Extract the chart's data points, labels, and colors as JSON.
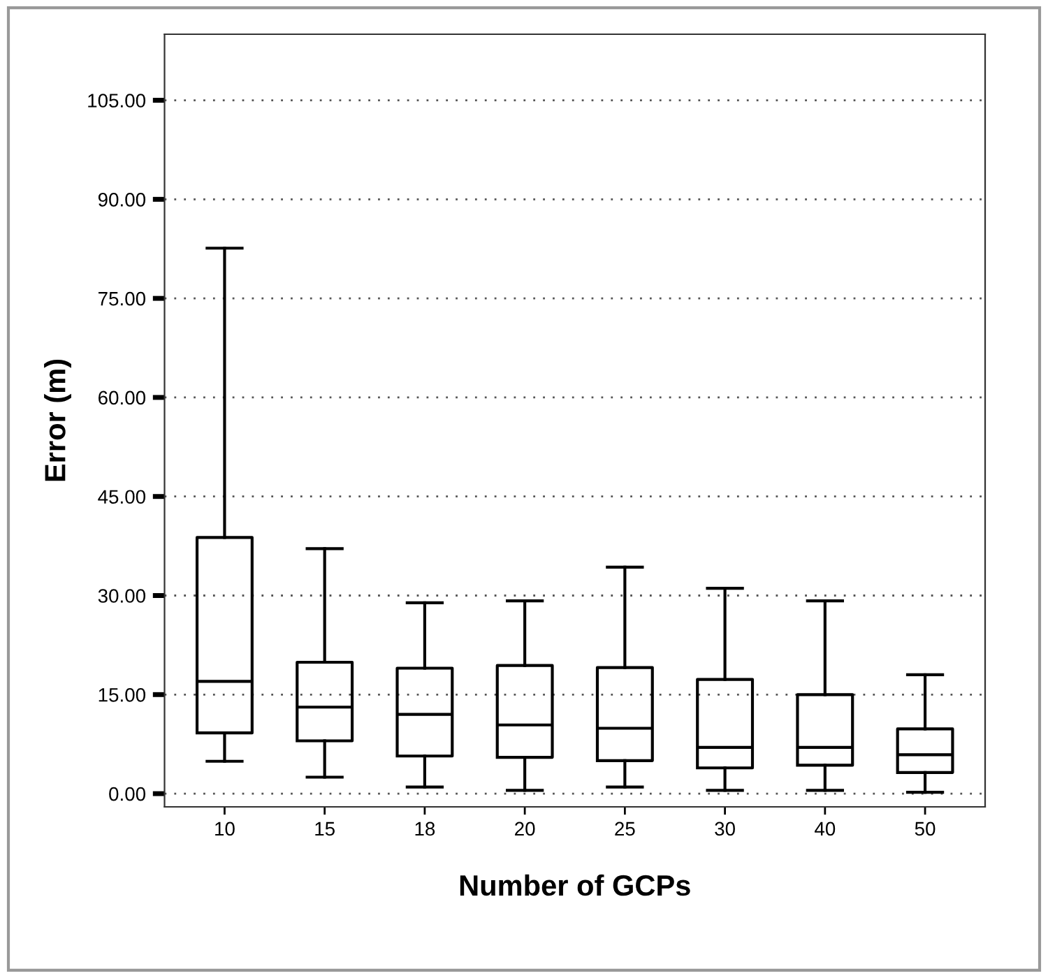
{
  "chart_data": {
    "type": "box",
    "xlabel": "Number of GCPs",
    "ylabel": "Error (m)",
    "categories": [
      "10",
      "15",
      "18",
      "20",
      "25",
      "30",
      "40",
      "50"
    ],
    "boxes": [
      {
        "low": 4.9,
        "q1": 9.2,
        "median": 17.0,
        "q3": 38.8,
        "high": 82.6
      },
      {
        "low": 2.5,
        "q1": 8.0,
        "median": 13.1,
        "q3": 19.9,
        "high": 37.1
      },
      {
        "low": 1.0,
        "q1": 5.7,
        "median": 12.0,
        "q3": 19.0,
        "high": 28.9
      },
      {
        "low": 0.5,
        "q1": 5.5,
        "median": 10.4,
        "q3": 19.4,
        "high": 29.2
      },
      {
        "low": 1.0,
        "q1": 5.0,
        "median": 9.9,
        "q3": 19.1,
        "high": 34.3
      },
      {
        "low": 0.5,
        "q1": 3.9,
        "median": 7.0,
        "q3": 17.3,
        "high": 31.1
      },
      {
        "low": 0.5,
        "q1": 4.3,
        "median": 7.0,
        "q3": 15.0,
        "high": 29.2
      },
      {
        "low": 0.2,
        "q1": 3.2,
        "median": 5.9,
        "q3": 9.8,
        "high": 18.0
      }
    ],
    "color": "#000000",
    "ylim": [
      -2,
      115
    ],
    "yticks": [
      {
        "value": 0,
        "label": "0.00"
      },
      {
        "value": 15,
        "label": "15.00"
      },
      {
        "value": 30,
        "label": "30.00"
      },
      {
        "value": 45,
        "label": "45.00"
      },
      {
        "value": 60,
        "label": "60.00"
      },
      {
        "value": 75,
        "label": "75.00"
      },
      {
        "value": 90,
        "label": "90.00"
      },
      {
        "value": 105,
        "label": "105.00"
      }
    ],
    "grid": "y"
  }
}
